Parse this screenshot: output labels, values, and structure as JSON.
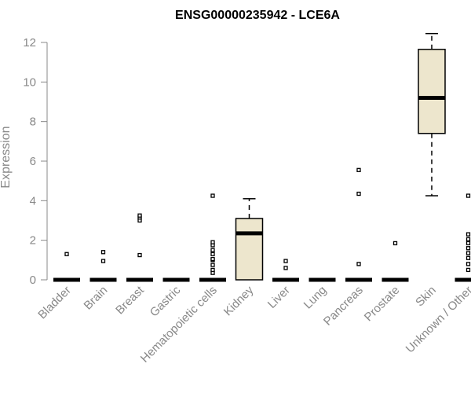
{
  "chart_data": {
    "type": "boxplot",
    "title": "ENSG00000235942 - LCE6A",
    "xlabel": "",
    "ylabel": "Expression",
    "ylim": [
      0,
      12.4
    ],
    "yticks": [
      0,
      2,
      4,
      6,
      8,
      10,
      12
    ],
    "box_color": "#ede6cd",
    "categories": [
      "Bladder",
      "Brain",
      "Breast",
      "Gastric",
      "Hematopoietic cells",
      "Kidney",
      "Liver",
      "Lung",
      "Pancreas",
      "Prostate",
      "Skin",
      "Unknown / Other"
    ],
    "boxes": [
      {
        "q1": 0,
        "median": 0,
        "q3": 0,
        "whisker_low": 0,
        "whisker_high": 0,
        "outliers": [
          1.3
        ]
      },
      {
        "q1": 0,
        "median": 0,
        "q3": 0,
        "whisker_low": 0,
        "whisker_high": 0,
        "outliers": [
          0.95,
          1.4
        ]
      },
      {
        "q1": 0,
        "median": 0,
        "q3": 0,
        "whisker_low": 0,
        "whisker_high": 0,
        "outliers": [
          1.25,
          3.0,
          3.15,
          3.25
        ]
      },
      {
        "q1": 0,
        "median": 0,
        "q3": 0,
        "whisker_low": 0,
        "whisker_high": 0,
        "outliers": []
      },
      {
        "q1": 0,
        "median": 0,
        "q3": 0,
        "whisker_low": 0,
        "whisker_high": 0,
        "outliers": [
          0.35,
          0.5,
          0.75,
          1.0,
          1.05,
          1.3,
          1.5,
          1.75,
          1.9,
          4.25
        ]
      },
      {
        "q1": 0,
        "median": 2.35,
        "q3": 3.1,
        "whisker_low": 0,
        "whisker_high": 4.1,
        "outliers": []
      },
      {
        "q1": 0,
        "median": 0,
        "q3": 0,
        "whisker_low": 0,
        "whisker_high": 0,
        "outliers": [
          0.6,
          0.95
        ]
      },
      {
        "q1": 0,
        "median": 0,
        "q3": 0,
        "whisker_low": 0,
        "whisker_high": 0,
        "outliers": []
      },
      {
        "q1": 0,
        "median": 0,
        "q3": 0,
        "whisker_low": 0,
        "whisker_high": 0,
        "outliers": [
          0.8,
          4.35,
          5.55
        ]
      },
      {
        "q1": 0,
        "median": 0,
        "q3": 0,
        "whisker_low": 0,
        "whisker_high": 0,
        "outliers": [
          1.85
        ]
      },
      {
        "q1": 7.4,
        "median": 9.2,
        "q3": 11.65,
        "whisker_low": 4.25,
        "whisker_high": 12.45,
        "outliers": []
      },
      {
        "q1": 0,
        "median": 0,
        "q3": 0,
        "whisker_low": 0,
        "whisker_high": 0,
        "outliers": [
          0.5,
          0.8,
          1.1,
          1.35,
          1.6,
          1.85,
          2.05,
          2.3,
          4.25
        ]
      }
    ]
  }
}
